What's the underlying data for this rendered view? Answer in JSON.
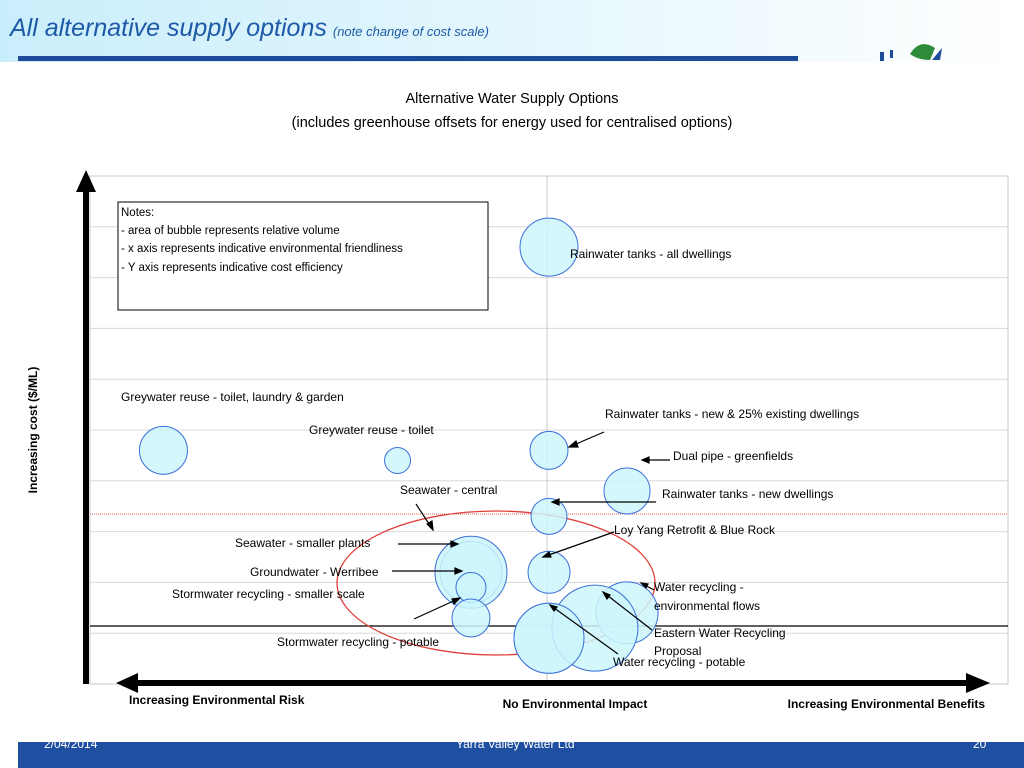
{
  "slide": {
    "title": "All alternative supply options",
    "subtitle": "(note change of cost scale)",
    "footer_date": "2/04/2014",
    "footer_org": "Yarra Valley Water Ltd",
    "footer_page": "20"
  },
  "colors": {
    "header_accent": "#1e4a9a",
    "bubble_fill": "#cdf6fb",
    "bubble_stroke": "#3b6fd8",
    "highlight_ellipse": "#e0403a",
    "reference_line": "#e06060"
  },
  "chart_data": {
    "type": "scatter",
    "title": "Alternative Water Supply Options",
    "subtitle": "(includes greenhouse offsets for energy used for centralised options)",
    "xlabel": "",
    "ylabel": "Increasing cost ($/ML)",
    "xlim": [
      -1,
      1
    ],
    "ylim": [
      0,
      10
    ],
    "grid": true,
    "x_axis_labels": {
      "left": "Increasing Environmental Risk",
      "center": "No Environmental Impact",
      "right": "Increasing Environmental Benefits"
    },
    "notes": [
      "Notes:",
      "- area of bubble represents relative volume",
      "- x axis represents indicative environmental friendliness",
      "- Y axis represents indicative cost efficiency"
    ],
    "series": [
      {
        "label": "Rainwater tanks - all dwellings",
        "x": 0.0,
        "y": 8.6,
        "size": 29
      },
      {
        "label": "Greywater reuse - toilet, laundry & garden",
        "x": -0.84,
        "y": 4.6,
        "size": 24
      },
      {
        "label": "Greywater reuse - toilet",
        "x": -0.33,
        "y": 4.4,
        "size": 13
      },
      {
        "label": "Rainwater tanks - new & 25% existing dwellings",
        "x": 0.0,
        "y": 4.6,
        "size": 19
      },
      {
        "label": "Dual pipe - greenfields",
        "x": 0.17,
        "y": 3.8,
        "size": 23
      },
      {
        "label": "Rainwater tanks - new dwellings",
        "x": 0.0,
        "y": 3.3,
        "size": 18
      },
      {
        "label": "Seawater - central",
        "x": -0.17,
        "y": 2.2,
        "size": 31
      },
      {
        "label": "Seawater - smaller plants",
        "x": -0.17,
        "y": 2.2,
        "size": 36
      },
      {
        "label": "Groundwater - Werribee",
        "x": -0.17,
        "y": 1.9,
        "size": 15
      },
      {
        "label": "Stormwater recycling - smaller scale",
        "x": -0.17,
        "y": 1.3,
        "size": 19
      },
      {
        "label": "Loy Yang Retrofit & Blue Rock",
        "x": 0.0,
        "y": 2.2,
        "size": 21
      },
      {
        "label": "Water recycling - environmental flows",
        "x": 0.17,
        "y": 1.4,
        "size": 31
      },
      {
        "label": "Stormwater recycling - potable",
        "x": 0.0,
        "y": 0.9,
        "size": 35
      },
      {
        "label": "Eastern Water Recycling Proposal",
        "x": 0.1,
        "y": 1.1,
        "size": 43
      },
      {
        "label": "Water recycling - potable",
        "x": 0.0,
        "y": 0.9,
        "size": 35
      }
    ],
    "annotations": {
      "seawater_central": "Seawater - central",
      "seawater_smaller": "Seawater - smaller plants",
      "groundwater": "Groundwater - Werribee",
      "stormwater_small": "Stormwater recycling - smaller scale",
      "stormwater_potable": "Stormwater recycling - potable",
      "loy_yang": "Loy Yang Retrofit & Blue Rock",
      "recycling_env_1": "Water recycling -",
      "recycling_env_2": "environmental flows",
      "eastern_1": "Eastern Water Recycling",
      "eastern_2": "Proposal",
      "recycling_potable": "Water recycling - potable",
      "rain_all": "Rainwater tanks - all dwellings",
      "grey_full": "Greywater reuse - toilet, laundry & garden",
      "grey_toilet": "Greywater reuse - toilet",
      "rain_new25": "Rainwater tanks - new & 25% existing dwellings",
      "dual_pipe": "Dual pipe - greenfields",
      "rain_new": "Rainwater tanks - new dwellings"
    }
  }
}
